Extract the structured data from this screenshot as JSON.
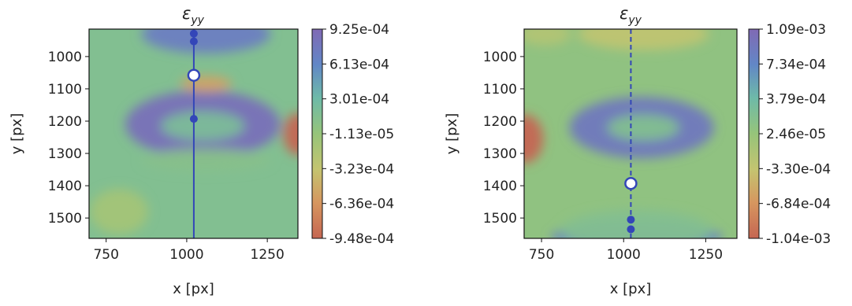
{
  "chart_data": [
    {
      "type": "heatmap",
      "title": "ε",
      "title_sub": "yy",
      "xlabel": "x [px]",
      "ylabel": "y [px]",
      "xlim": [
        697,
        1345
      ],
      "ylim": [
        1563,
        915
      ],
      "xticks": [
        750,
        1000,
        1250
      ],
      "yticks": [
        1000,
        1100,
        1200,
        1300,
        1400,
        1500
      ],
      "colorbar": {
        "labels": [
          "9.25e-04",
          "6.13e-04",
          "3.01e-04",
          "-1.13e-05",
          "-3.23e-04",
          "-6.36e-04",
          "-9.48e-04"
        ],
        "vmin": -0.000948,
        "vmax": 0.000925
      },
      "background_value": 0.00015,
      "features": [
        {
          "x": 1050,
          "y": 1210,
          "rx": 240,
          "ry": 105,
          "value": 0.00085
        },
        {
          "x": 1050,
          "y": 1215,
          "rx": 130,
          "ry": 45,
          "value": 0.0002
        },
        {
          "x": 1060,
          "y": 930,
          "rx": 200,
          "ry": 60,
          "value": 0.0007
        },
        {
          "x": 1060,
          "y": 1320,
          "rx": 200,
          "ry": 35,
          "value": 0.0001
        },
        {
          "x": 1060,
          "y": 1085,
          "rx": 80,
          "ry": 25,
          "value": -0.00055
        },
        {
          "x": 1345,
          "y": 1240,
          "rx": 45,
          "ry": 65,
          "value": -0.001
        },
        {
          "x": 790,
          "y": 1480,
          "rx": 90,
          "ry": 70,
          "value": -0.0001
        }
      ],
      "line": {
        "x": 1022,
        "style": "solid"
      },
      "filled_points": [
        {
          "x": 1022,
          "y": 929
        },
        {
          "x": 1022,
          "y": 953
        },
        {
          "x": 1022,
          "y": 1193
        }
      ],
      "open_point": {
        "x": 1022,
        "y": 1058
      },
      "accent_color": "#3346b8"
    },
    {
      "type": "heatmap",
      "title": "ε",
      "title_sub": "yy",
      "xlabel": "x [px]",
      "ylabel": "y [px]",
      "xlim": [
        697,
        1345
      ],
      "ylim": [
        1563,
        915
      ],
      "xticks": [
        750,
        1000,
        1250
      ],
      "yticks": [
        1000,
        1100,
        1200,
        1300,
        1400,
        1500
      ],
      "colorbar": {
        "labels": [
          "1.09e-03",
          "7.34e-04",
          "3.79e-04",
          "2.46e-05",
          "-3.30e-04",
          "-6.84e-04",
          "-1.04e-03"
        ],
        "vmin": -0.00104,
        "vmax": 0.00109
      },
      "background_value": 8e-05,
      "features": [
        {
          "x": 1055,
          "y": 1220,
          "rx": 220,
          "ry": 95,
          "value": 0.0009
        },
        {
          "x": 1060,
          "y": 1220,
          "rx": 110,
          "ry": 40,
          "value": 0.0002
        },
        {
          "x": 1040,
          "y": 1560,
          "rx": 260,
          "ry": 45,
          "value": 0.0008
        },
        {
          "x": 1040,
          "y": 1540,
          "rx": 230,
          "ry": 65,
          "value": 0.0002
        },
        {
          "x": 700,
          "y": 1255,
          "rx": 55,
          "ry": 75,
          "value": -0.0011
        },
        {
          "x": 1060,
          "y": 930,
          "rx": 200,
          "ry": 50,
          "value": -0.0003
        },
        {
          "x": 760,
          "y": 930,
          "rx": 80,
          "ry": 35,
          "value": -0.0002
        }
      ],
      "line": {
        "x": 1022,
        "style": "dashed"
      },
      "filled_points": [
        {
          "x": 1022,
          "y": 1505
        },
        {
          "x": 1022,
          "y": 1535
        }
      ],
      "open_point": {
        "x": 1022,
        "y": 1393
      },
      "accent_color": "#3346b8"
    }
  ]
}
